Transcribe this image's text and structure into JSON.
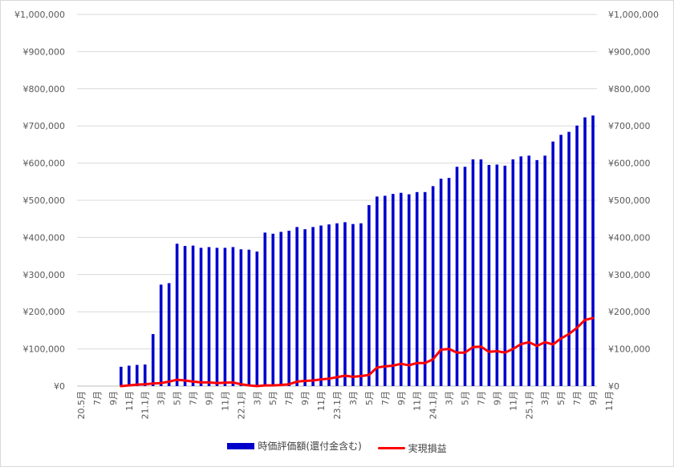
{
  "chart_data": {
    "type": "bar",
    "grid": true,
    "legend_position": "bottom",
    "colors": {
      "bar": "#0000cc",
      "line": "#ff0000",
      "grid": "#d9d9d9",
      "text": "#595959"
    },
    "ylim": [
      0,
      1000000
    ],
    "yticks": [
      "¥0",
      "¥100,000",
      "¥200,000",
      "¥300,000",
      "¥400,000",
      "¥500,000",
      "¥600,000",
      "¥700,000",
      "¥800,000",
      "¥900,000",
      "¥1,000,000"
    ],
    "xtick_labels": [
      "20.5月",
      "7月",
      "9月",
      "11月",
      "21.1月",
      "3月",
      "5月",
      "7月",
      "9月",
      "11月",
      "22.1月",
      "3月",
      "5月",
      "7月",
      "9月",
      "11月",
      "23.1月",
      "3月",
      "5月",
      "7月",
      "9月",
      "11月",
      "24.1月",
      "3月",
      "5月",
      "7月",
      "9月",
      "11月",
      "25.1月",
      "3月",
      "5月",
      "7月",
      "9月",
      "11月"
    ],
    "series": [
      {
        "name": "時価評価額(還付金含む)",
        "type": "bar",
        "values": [
          0,
          0,
          0,
          0,
          0,
          52000,
          55000,
          57000,
          58000,
          140000,
          273000,
          277000,
          383000,
          377000,
          378000,
          372000,
          374000,
          372000,
          372000,
          374000,
          368000,
          367000,
          362000,
          413000,
          410000,
          415000,
          418000,
          428000,
          422000,
          428000,
          432000,
          435000,
          438000,
          441000,
          436000,
          438000,
          487000,
          510000,
          512000,
          517000,
          520000,
          516000,
          522000,
          522000,
          538000,
          558000,
          560000,
          590000,
          590000,
          610000,
          610000,
          595000,
          596000,
          593000,
          610000,
          618000,
          620000,
          608000,
          620000,
          658000,
          676000,
          684000,
          701000,
          723000,
          728000
        ]
      },
      {
        "name": "実現損益",
        "type": "line",
        "values": [
          null,
          null,
          null,
          null,
          null,
          0,
          2000,
          4000,
          5000,
          7000,
          8000,
          12000,
          17000,
          15000,
          12000,
          10000,
          10000,
          8000,
          9000,
          10000,
          5000,
          2000,
          0,
          2000,
          2000,
          3000,
          5000,
          12000,
          14000,
          15000,
          18000,
          20000,
          24000,
          28000,
          25000,
          27000,
          30000,
          50000,
          53000,
          55000,
          60000,
          56000,
          62000,
          62000,
          72000,
          98000,
          100000,
          90000,
          90000,
          105000,
          106000,
          92000,
          94000,
          90000,
          100000,
          113000,
          118000,
          108000,
          118000,
          112000,
          128000,
          140000,
          157000,
          178000,
          183000
        ]
      }
    ]
  }
}
